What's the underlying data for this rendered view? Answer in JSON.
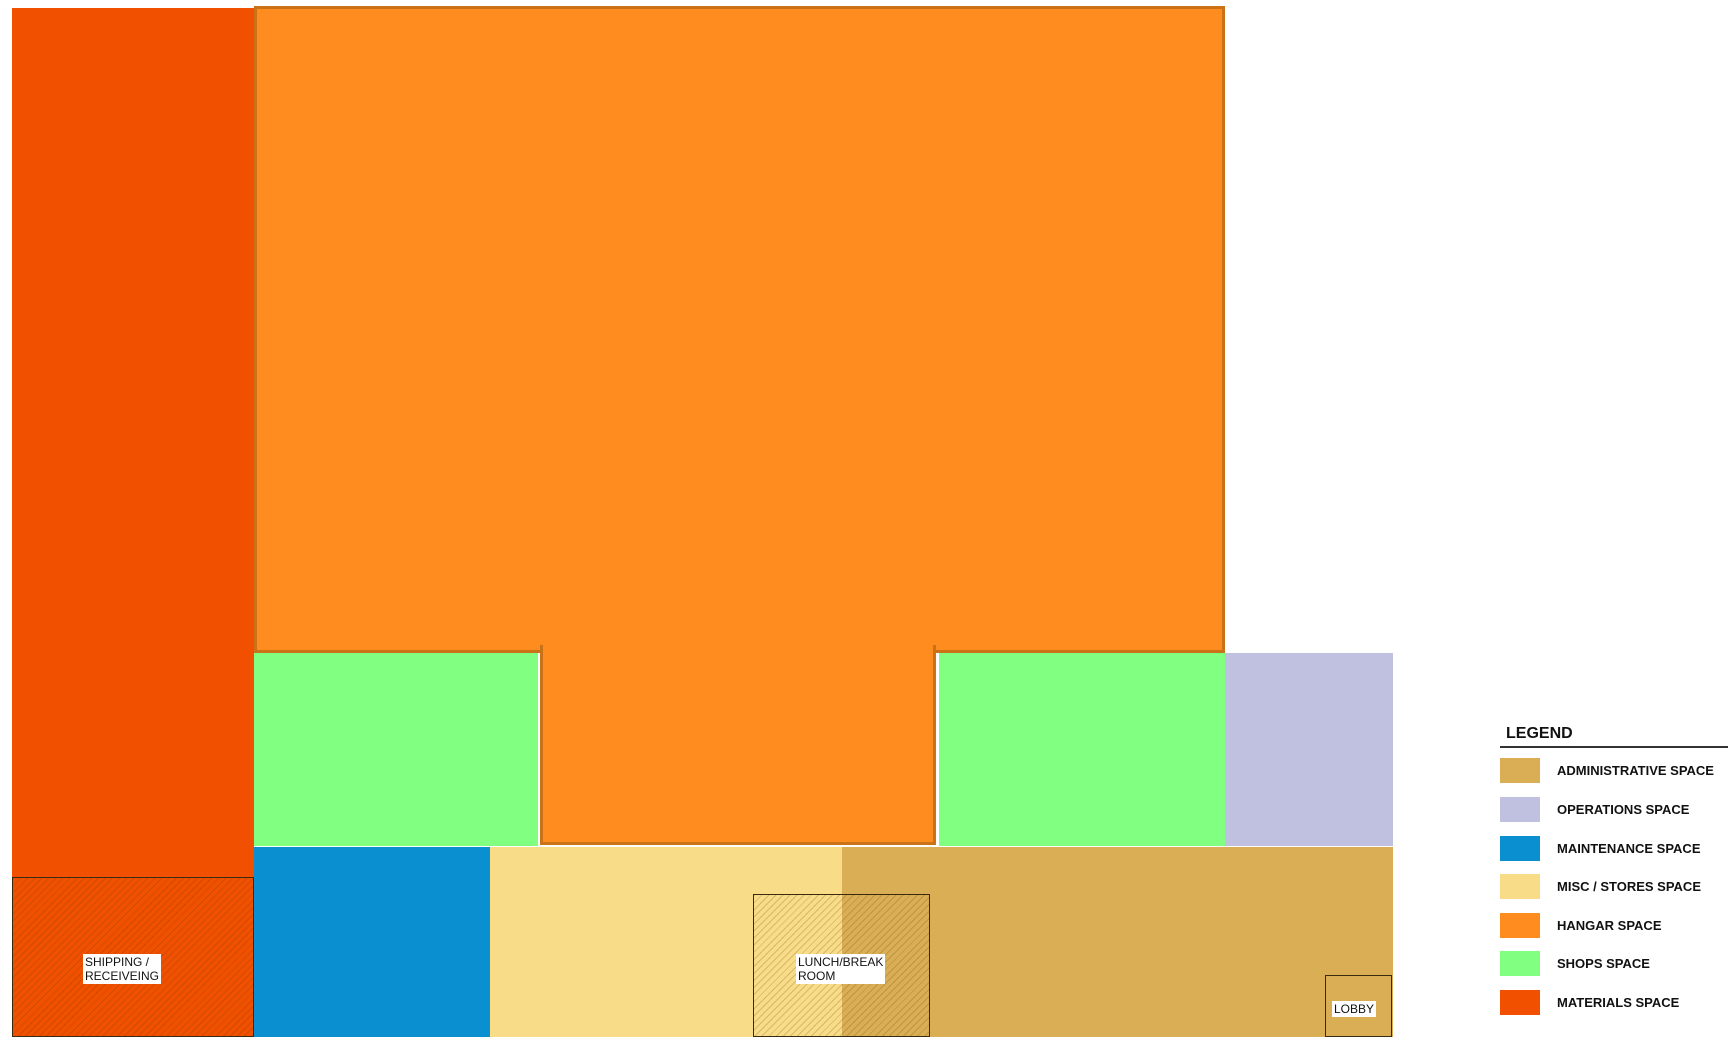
{
  "rooms": {
    "shipping_label": "SHIPPING /\nRECEIVEING",
    "lunch_label": "LUNCH/BREAK\nROOM",
    "lobby_label": "LOBBY"
  },
  "legend": {
    "title": "LEGEND",
    "items": [
      {
        "label": "ADMINISTRATIVE SPACE",
        "color": "#D9AE54"
      },
      {
        "label": "OPERATIONS SPACE",
        "color": "#C0C0E0"
      },
      {
        "label": "MAINTENANCE SPACE",
        "color": "#0A8FD0"
      },
      {
        "label": "MISC / STORES SPACE",
        "color": "#F8DC88"
      },
      {
        "label": "HANGAR SPACE",
        "color": "#FF8C1F"
      },
      {
        "label": "SHOPS SPACE",
        "color": "#80FF80"
      },
      {
        "label": "MATERIALS SPACE",
        "color": "#F05000"
      }
    ]
  }
}
